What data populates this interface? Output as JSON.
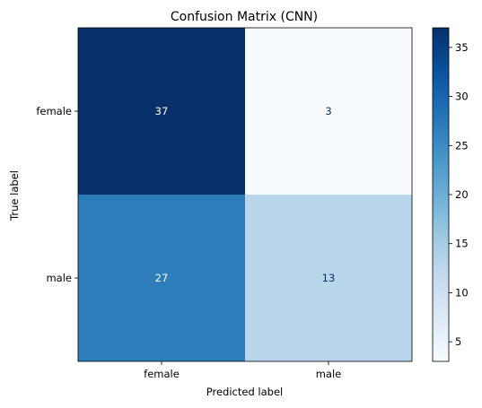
{
  "chart_data": {
    "type": "heatmap",
    "title": "Confusion Matrix (CNN)",
    "xlabel": "Predicted label",
    "ylabel": "True label",
    "x_categories": [
      "female",
      "male"
    ],
    "y_categories": [
      "female",
      "male"
    ],
    "values": [
      [
        37,
        3
      ],
      [
        27,
        13
      ]
    ],
    "colormap": "Blues",
    "color_range": [
      3,
      37
    ],
    "colorbar_ticks": [
      5,
      10,
      15,
      20,
      25,
      30,
      35
    ],
    "grid": false,
    "colorbar_position": "right"
  }
}
